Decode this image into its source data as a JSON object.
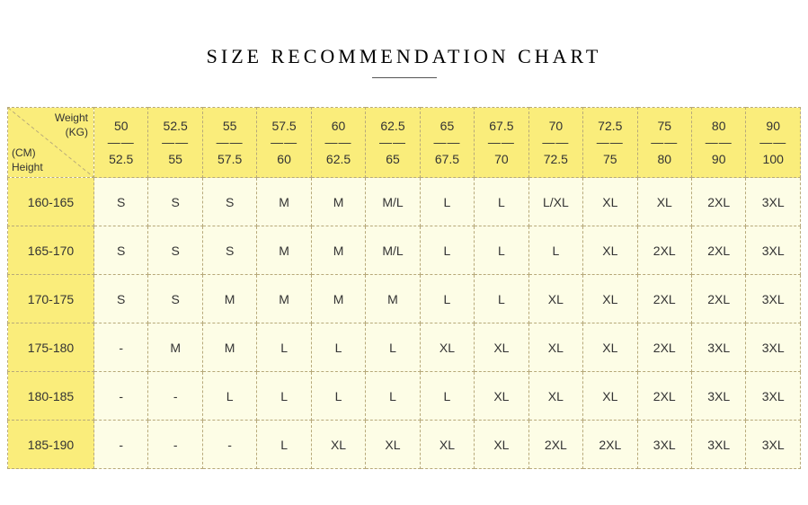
{
  "title": "SIZE RECOMMENDATION CHART",
  "corner": {
    "weight_label": "Weight",
    "weight_unit": "(KG)",
    "height_unit": "(CM)",
    "height_label": "Height"
  },
  "weight_ranges": [
    {
      "from": "50",
      "to": "52.5"
    },
    {
      "from": "52.5",
      "to": "55"
    },
    {
      "from": "55",
      "to": "57.5"
    },
    {
      "from": "57.5",
      "to": "60"
    },
    {
      "from": "60",
      "to": "62.5"
    },
    {
      "from": "62.5",
      "to": "65"
    },
    {
      "from": "65",
      "to": "67.5"
    },
    {
      "from": "67.5",
      "to": "70"
    },
    {
      "from": "70",
      "to": "72.5"
    },
    {
      "from": "72.5",
      "to": "75"
    },
    {
      "from": "75",
      "to": "80"
    },
    {
      "from": "80",
      "to": "90"
    },
    {
      "from": "90",
      "to": "100"
    }
  ],
  "height_ranges": [
    "160-165",
    "165-170",
    "170-175",
    "175-180",
    "180-185",
    "185-190"
  ],
  "sizes": [
    [
      "S",
      "S",
      "S",
      "M",
      "M",
      "M/L",
      "L",
      "L",
      "L/XL",
      "XL",
      "XL",
      "2XL",
      "3XL"
    ],
    [
      "S",
      "S",
      "S",
      "M",
      "M",
      "M/L",
      "L",
      "L",
      "L",
      "XL",
      "2XL",
      "2XL",
      "3XL"
    ],
    [
      "S",
      "S",
      "M",
      "M",
      "M",
      "M",
      "L",
      "L",
      "XL",
      "XL",
      "2XL",
      "2XL",
      "3XL"
    ],
    [
      "-",
      "M",
      "M",
      "L",
      "L",
      "L",
      "XL",
      "XL",
      "XL",
      "XL",
      "2XL",
      "3XL",
      "3XL"
    ],
    [
      "-",
      "-",
      "L",
      "L",
      "L",
      "L",
      "L",
      "XL",
      "XL",
      "XL",
      "2XL",
      "3XL",
      "3XL"
    ],
    [
      "-",
      "-",
      "-",
      "L",
      "XL",
      "XL",
      "XL",
      "XL",
      "2XL",
      "2XL",
      "3XL",
      "3XL",
      "3XL"
    ]
  ],
  "style": {
    "header_bg": "#faed7b",
    "body_bg": "#fdfde6",
    "border_color": "#b7a97a",
    "title_font": "Times New Roman",
    "title_fontsize": 22,
    "cell_fontsize": 14,
    "corner_fontsize": 12,
    "page_bg": "#ffffff",
    "dash_separator": "——"
  }
}
